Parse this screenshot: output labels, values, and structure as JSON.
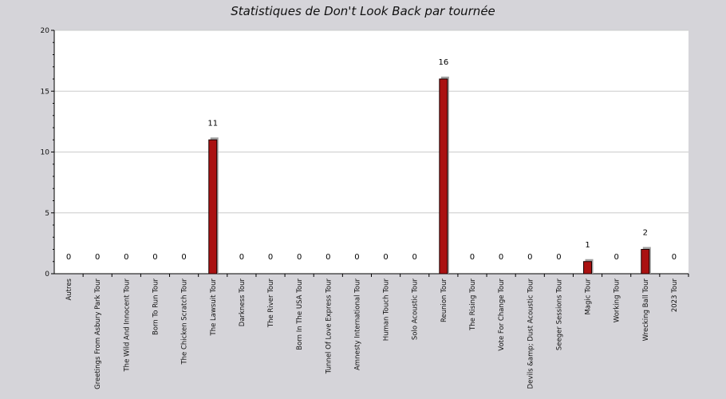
{
  "chart_data": {
    "type": "bar",
    "title": "Statistiques de Don't Look Back par tournée",
    "xlabel": "",
    "ylabel": "",
    "ylim": [
      0,
      20
    ],
    "yticks": [
      0,
      5,
      10,
      15,
      20
    ],
    "grid": true,
    "categories": [
      "Autres",
      "Greetings From Asbury Park Tour",
      "The Wild And Innocent Tour",
      "Born To Run Tour",
      "The Chicken Scratch Tour",
      "The Lawsuit Tour",
      "Darkness Tour",
      "The River Tour",
      "Born In The USA Tour",
      "Tunnel Of Love Express Tour",
      "Amnesty International Tour",
      "Human Touch Tour",
      "Solo Acoustic Tour",
      "Reunion Tour",
      "The Rising Tour",
      "Vote For Change Tour",
      "Devils &amp; Dust Acoustic Tour",
      "Seeger Sessions Tour",
      "Magic Tour",
      "Working Tour",
      "Wrecking Ball Tour",
      "2023 Tour"
    ],
    "values": [
      0,
      0,
      0,
      0,
      0,
      11,
      0,
      0,
      0,
      0,
      0,
      0,
      0,
      16,
      0,
      0,
      0,
      0,
      1,
      0,
      2,
      0
    ],
    "colors": {
      "bar": "#aa1111",
      "bar_stroke": "#1a0000",
      "shadow": "#a0a0a0",
      "plot_bg": "#ffffff",
      "page_bg": "#d5d4d9",
      "grid": "#cccccc"
    }
  }
}
